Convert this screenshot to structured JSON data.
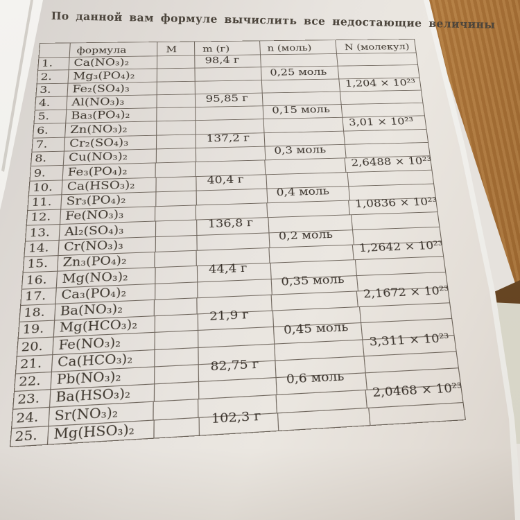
{
  "page": {
    "title": "По данной вам формуле вычислить все недостающие величины"
  },
  "table": {
    "headers": {
      "num": "",
      "formula": "формула",
      "M": "M",
      "m": "m (г)",
      "n": "n (моль)",
      "N": "N (молекул)"
    },
    "rows": [
      {
        "num": "1.",
        "formula": "Ca(NO₃)₂",
        "M": "",
        "m": "98,4 г",
        "n": "",
        "N": ""
      },
      {
        "num": "2.",
        "formula": "Mg₃(PO₄)₂",
        "M": "",
        "m": "",
        "n": "0,25 моль",
        "N": ""
      },
      {
        "num": "3.",
        "formula": "Fe₂(SO₄)₃",
        "M": "",
        "m": "",
        "n": "",
        "N": "1,204 × 10²³"
      },
      {
        "num": "4.",
        "formula": "Al(NO₃)₃",
        "M": "",
        "m": "95,85 г",
        "n": "",
        "N": ""
      },
      {
        "num": "5.",
        "formula": "Ba₃(PO₄)₂",
        "M": "",
        "m": "",
        "n": "0,15 моль",
        "N": ""
      },
      {
        "num": "6.",
        "formula": "Zn(NO₃)₂",
        "M": "",
        "m": "",
        "n": "",
        "N": "3,01 × 10²³"
      },
      {
        "num": "7.",
        "formula": "Cr₂(SO₄)₃",
        "M": "",
        "m": "137,2 г",
        "n": "",
        "N": ""
      },
      {
        "num": "8.",
        "formula": "Cu(NO₃)₂",
        "M": "",
        "m": "",
        "n": "0,3 моль",
        "N": ""
      },
      {
        "num": "9.",
        "formula": "Fe₃(PO₄)₂",
        "M": "",
        "m": "",
        "n": "",
        "N": "2,6488 × 10²³"
      },
      {
        "num": "10.",
        "formula": "Ca(HSO₃)₂",
        "M": "",
        "m": "40,4 г",
        "n": "",
        "N": ""
      },
      {
        "num": "11.",
        "formula": "Sr₃(PO₄)₂",
        "M": "",
        "m": "",
        "n": "0,4 моль",
        "N": ""
      },
      {
        "num": "12.",
        "formula": "Fe(NO₃)₃",
        "M": "",
        "m": "",
        "n": "",
        "N": "1,0836 × 10²³"
      },
      {
        "num": "13.",
        "formula": "Al₂(SO₄)₃",
        "M": "",
        "m": "136,8 г",
        "n": "",
        "N": ""
      },
      {
        "num": "14.",
        "formula": "Cr(NO₃)₃",
        "M": "",
        "m": "",
        "n": "0,2 моль",
        "N": ""
      },
      {
        "num": "15.",
        "formula": "Zn₃(PO₄)₂",
        "M": "",
        "m": "",
        "n": "",
        "N": "1,2642 × 10²³"
      },
      {
        "num": "16.",
        "formula": "Mg(NO₃)₂",
        "M": "",
        "m": "44,4 г",
        "n": "",
        "N": ""
      },
      {
        "num": "17.",
        "formula": "Ca₃(PO₄)₂",
        "M": "",
        "m": "",
        "n": "0,35 моль",
        "N": ""
      },
      {
        "num": "18.",
        "formula": "Ba(NO₃)₂",
        "M": "",
        "m": "",
        "n": "",
        "N": "2,1672 × 10²³"
      },
      {
        "num": "19.",
        "formula": "Mg(HCO₃)₂",
        "M": "",
        "m": "21,9 г",
        "n": "",
        "N": ""
      },
      {
        "num": "20.",
        "formula": "Fe(NO₃)₂",
        "M": "",
        "m": "",
        "n": "0,45 моль",
        "N": ""
      },
      {
        "num": "21.",
        "formula": "Ca(HCO₃)₂",
        "M": "",
        "m": "",
        "n": "",
        "N": "3,311 × 10²³"
      },
      {
        "num": "22.",
        "formula": "Pb(NO₃)₂",
        "M": "",
        "m": "82,75 г",
        "n": "",
        "N": ""
      },
      {
        "num": "23.",
        "formula": "Ba(HSO₃)₂",
        "M": "",
        "m": "",
        "n": "0,6 моль",
        "N": ""
      },
      {
        "num": "24.",
        "formula": "Sr(NO₃)₂",
        "M": "",
        "m": "",
        "n": "",
        "N": "2,0468 × 10²³"
      },
      {
        "num": "25.",
        "formula": "Mg(HSO₃)₂",
        "M": "",
        "m": "102,3 г",
        "n": "",
        "N": ""
      }
    ]
  },
  "colors": {
    "desk_wood": "#aa7336",
    "desk_edge": "#553718",
    "paper": "#e8e4df",
    "under_sheet": "#f4f3f0",
    "ink": "#3c352c",
    "table_line": "#52493e",
    "red_mark": "#b73246"
  }
}
